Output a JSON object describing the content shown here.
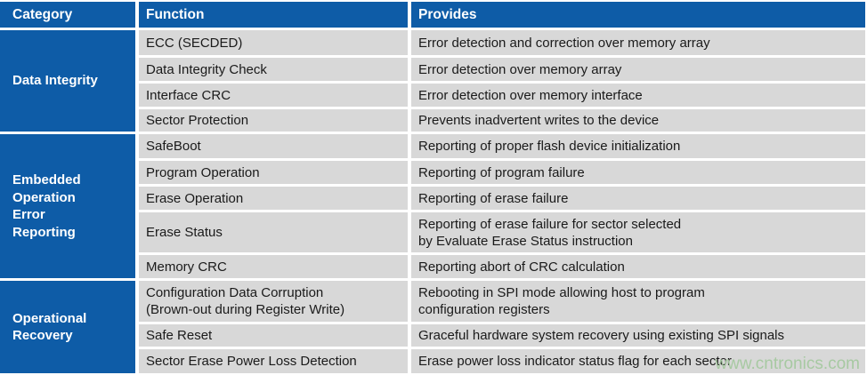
{
  "table": {
    "headers": [
      "Category",
      "Function",
      "Provides"
    ],
    "groups": [
      {
        "category": "Data Integrity",
        "rows": [
          {
            "function": "ECC (SECDED)",
            "provides": "Error detection and correction over memory array"
          },
          {
            "function": "Data Integrity Check",
            "provides": "Error detection over memory array"
          },
          {
            "function": "Interface CRC",
            "provides": "Error detection over memory interface"
          },
          {
            "function": "Sector Protection",
            "provides": "Prevents inadvertent writes to the device"
          }
        ]
      },
      {
        "category": "Embedded\nOperation\nError\nReporting",
        "rows": [
          {
            "function": "SafeBoot",
            "provides": "Reporting of proper flash device initialization"
          },
          {
            "function": "Program Operation",
            "provides": "Reporting of program failure"
          },
          {
            "function": "Erase Operation",
            "provides": "Reporting of erase failure"
          },
          {
            "function": "Erase Status",
            "provides": "Reporting of erase failure for sector selected\nby Evaluate Erase Status instruction"
          },
          {
            "function": "Memory CRC",
            "provides": "Reporting abort of CRC calculation"
          }
        ]
      },
      {
        "category": "Operational\nRecovery",
        "rows": [
          {
            "function": "Configuration Data Corruption\n(Brown-out during Register Write)",
            "provides": "Rebooting in SPI mode allowing host to program\nconfiguration registers"
          },
          {
            "function": "Safe Reset",
            "provides": "Graceful hardware system recovery using existing SPI signals"
          },
          {
            "function": "Sector Erase Power Loss Detection",
            "provides": "Erase power loss indicator status flag for each sector"
          }
        ]
      }
    ]
  },
  "watermark": "www.cntronics.com",
  "colors": {
    "header_bg": "#0e5ca7",
    "category_bg": "#0e5ca7",
    "row_bg": "#d8d8d8",
    "header_text": "#ffffff",
    "body_text": "#1a1a1a",
    "watermark": "#a5c9a0"
  }
}
